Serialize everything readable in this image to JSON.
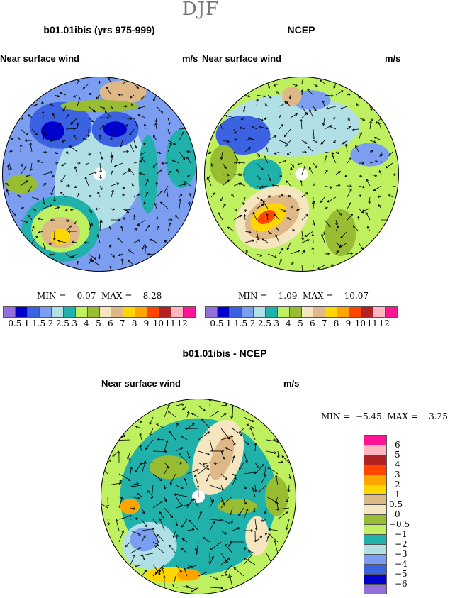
{
  "season": "DJF",
  "panels": [
    {
      "title": "b01.01ibis (yrs 975-999)",
      "subtitle": "Near surface wind",
      "units": "m/s",
      "min_label": "MIN =",
      "min": "0.07",
      "max_label": "MAX =",
      "max": "8.28"
    },
    {
      "title": "NCEP",
      "subtitle": "Near surface wind",
      "units": "m/s",
      "min_label": "MIN =",
      "min": "1.09",
      "max_label": "MAX =",
      "max": "10.07"
    },
    {
      "title": "b01.01ibis - NCEP",
      "subtitle": "Near surface wind",
      "units": "m/s",
      "min_label": "MIN =",
      "min": "−5.45",
      "max_label": "MAX =",
      "max": "3.25"
    }
  ],
  "colorbar_abs": {
    "labels": [
      "0.5",
      "1",
      "1.5",
      "2",
      "2.5",
      "3",
      "4",
      "5",
      "6",
      "7",
      "8",
      "9",
      "10",
      "11",
      "12"
    ],
    "colors": [
      "#9370db",
      "#0000cd",
      "#3b62e0",
      "#7b9ef0",
      "#b0e0e6",
      "#20b2aa",
      "#bff060",
      "#98bd33",
      "#f5e6c0",
      "#deb887",
      "#ffd700",
      "#ffa500",
      "#ff4500",
      "#b22222",
      "#ffb6c1",
      "#ff1493"
    ]
  },
  "colorbar_diff": {
    "labels": [
      "6",
      "5",
      "4",
      "3",
      "2",
      "1",
      "0.5",
      "0",
      "−0.5",
      "−1",
      "−2",
      "−3",
      "−4",
      "−5",
      "−6"
    ],
    "colors": [
      "#ff1493",
      "#ffb6c1",
      "#b22222",
      "#ff4500",
      "#ffa500",
      "#ffd700",
      "#deb887",
      "#f5e6c0",
      "#98bd33",
      "#bff060",
      "#20b2aa",
      "#b0e0e6",
      "#7b9ef0",
      "#3b62e0",
      "#0000cd",
      "#9370db"
    ]
  }
}
